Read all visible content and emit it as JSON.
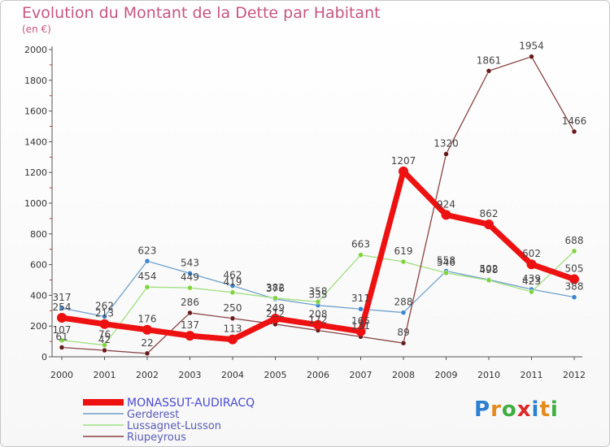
{
  "header": {
    "title": "Evolution du Montant de la Dette par Habitant",
    "subtitle": "(en €)"
  },
  "logo": {
    "text": "Proxiti"
  },
  "chart_data": {
    "type": "line",
    "x": [
      "2000",
      "2001",
      "2002",
      "2003",
      "2004",
      "2005",
      "2006",
      "2007",
      "2008",
      "2009",
      "2010",
      "2011",
      "2012"
    ],
    "ylim": [
      0,
      2000
    ],
    "yticks": [
      0,
      200,
      400,
      600,
      800,
      1000,
      1200,
      1400,
      1600,
      1800,
      2000
    ],
    "grid": false,
    "legend_position": "bottom-left",
    "series": [
      {
        "name": "MONASSUT-AUDIRACQ",
        "color": "#ee1111",
        "point_color": "#ee1111",
        "main": true,
        "values": [
          254,
          213,
          176,
          137,
          113,
          249,
          208,
          165,
          1207,
          924,
          862,
          602,
          505
        ]
      },
      {
        "name": "Gerderest",
        "color": "#6ea0cc",
        "point_color": "#3a86d0",
        "values": [
          317,
          262,
          623,
          543,
          462,
          376,
          335,
          311,
          288,
          558,
          502,
          439,
          388
        ]
      },
      {
        "name": "Lussagnet-Lusson",
        "color": "#a0e080",
        "point_color": "#7fd43c",
        "values": [
          107,
          76,
          454,
          449,
          419,
          382,
          358,
          663,
          619,
          546,
          498,
          423,
          688
        ]
      },
      {
        "name": "Riupeyrous",
        "color": "#8a4444",
        "point_color": "#6a1a1a",
        "values": [
          61,
          42,
          22,
          286,
          250,
          212,
          172,
          131,
          89,
          1320,
          1861,
          1954,
          1466
        ]
      }
    ]
  }
}
